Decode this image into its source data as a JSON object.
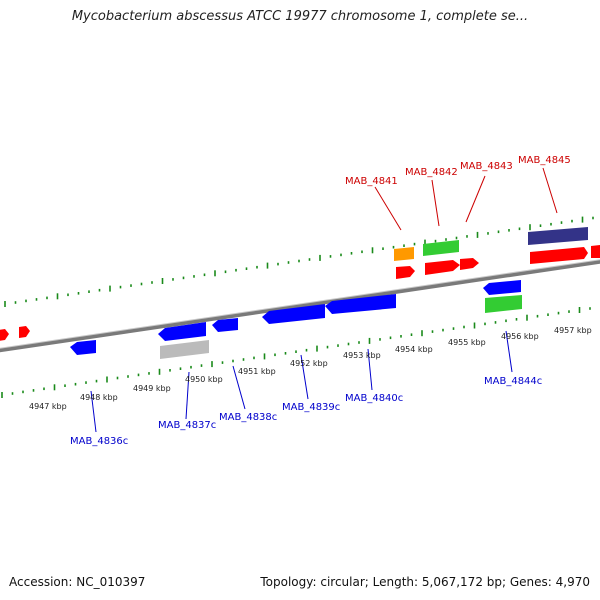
{
  "title": "Mycobacterium abscessus ATCC 19977 chromosome 1, complete se...",
  "accession": "Accession: NC_010397",
  "topology": "Topology: circular; Length: 5,067,172 bp; Genes: 4,970",
  "colors": {
    "forward_gene": "#ff0000",
    "reverse_gene": "#0000ff",
    "forward_label": "#cc0000",
    "reverse_label": "#0000cc",
    "tick": "#1a8a1a",
    "backbone": "#808080",
    "orange": "#ff9900",
    "green": "#33cc33",
    "gray": "#bbbbbb",
    "navy": "#333388"
  },
  "bottom_scale": {
    "kbp_labels": [
      "4947 kbp",
      "4948 kbp",
      "4949 kbp",
      "4950 kbp",
      "4951 kbp",
      "4952 kbp",
      "4953 kbp",
      "4954 kbp",
      "4955 kbp",
      "4956 kbp",
      "4957 kbp"
    ]
  },
  "forward_genes": [
    {
      "label": "MAB_4841"
    },
    {
      "label": "MAB_4842"
    },
    {
      "label": "MAB_4843"
    },
    {
      "label": "MAB_4845"
    }
  ],
  "reverse_genes": [
    {
      "label": "MAB_4836c"
    },
    {
      "label": "MAB_4837c"
    },
    {
      "label": "MAB_4838c"
    },
    {
      "label": "MAB_4839c"
    },
    {
      "label": "MAB_4840c"
    },
    {
      "label": "MAB_4844c"
    }
  ]
}
